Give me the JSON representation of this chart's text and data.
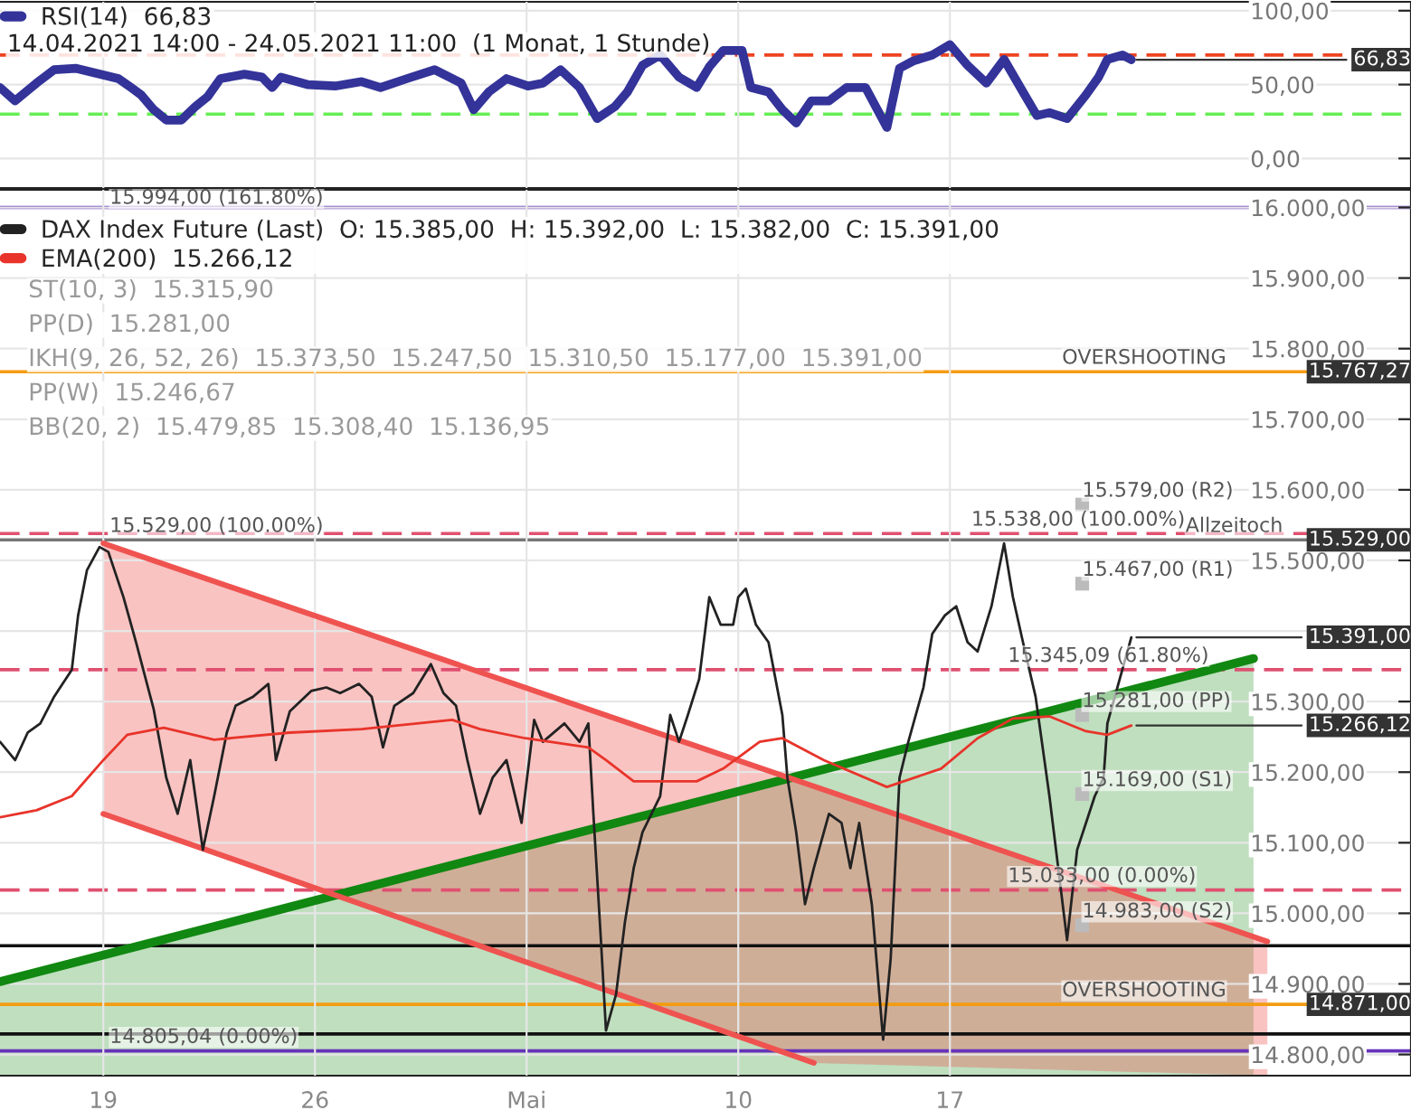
{
  "chart_data": [
    {
      "type": "line",
      "legend": "top left",
      "grid": true,
      "tick_labels": "y",
      "xlim": [
        "2021-04-15T14:00",
        "2021-06-01T06:00"
      ],
      "ylim": [
        -20,
        106
      ],
      "xticks": [
        {
          "value": "2021-04-19",
          "label": null
        },
        {
          "value": "2021-04-26",
          "label": null
        },
        {
          "value": "2021-05-03",
          "label": null
        },
        {
          "value": "2021-05-10",
          "label": null
        },
        {
          "value": "2021-05-17",
          "label": null
        }
      ],
      "yticks": [
        {
          "value": 0,
          "label": "0,00"
        },
        {
          "value": 50,
          "label": "50,00"
        },
        {
          "value": 100,
          "label": "100,00"
        }
      ],
      "series": [
        {
          "name": "RSI(14)  66,83",
          "color": "#333399",
          "x": [
            "2021-04-15T14:00",
            "2021-04-16T02:00",
            "2021-04-16T12:00",
            "2021-04-16T19:00",
            "2021-04-17T09:00",
            "2021-04-18T02:00",
            "2021-04-19T12:00",
            "2021-04-19T22:00",
            "2021-04-20T06:00",
            "2021-04-20T16:00",
            "2021-04-21T02:00",
            "2021-04-21T14:00",
            "2021-04-22T01:00",
            "2021-04-22T11:00",
            "2021-04-22T21:00",
            "2021-04-23T16:00",
            "2021-04-24T06:00",
            "2021-04-24T14:00",
            "2021-04-24T21:00",
            "2021-04-25T18:00",
            "2021-04-26T16:00",
            "2021-04-27T13:00",
            "2021-04-28T04:00",
            "2021-04-29T01:00",
            "2021-04-29T23:00",
            "2021-04-30T20:00",
            "2021-05-01T06:00",
            "2021-05-01T18:00",
            "2021-05-02T08:00",
            "2021-05-03T01:00",
            "2021-05-03T13:00",
            "2021-05-04T03:00",
            "2021-05-04T18:00",
            "2021-05-05T08:00",
            "2021-05-05T22:00",
            "2021-05-06T08:00",
            "2021-05-06T20:00",
            "2021-05-07T10:00",
            "2021-05-08T01:00",
            "2021-05-08T15:00",
            "2021-05-09T01:00",
            "2021-05-09T12:00",
            "2021-05-10T03:00",
            "2021-05-10T10:00",
            "2021-05-11T00:00",
            "2021-05-11T11:00",
            "2021-05-11T22:00",
            "2021-05-12T10:00",
            "2021-05-13T00:00",
            "2021-05-13T14:00",
            "2021-05-14T05:00",
            "2021-05-14T22:00",
            "2021-05-15T08:00",
            "2021-05-15T19:00",
            "2021-05-16T10:00",
            "2021-05-17T00:00",
            "2021-05-17T14:00",
            "2021-05-18T05:00",
            "2021-05-18T19:00",
            "2021-05-19T10:00",
            "2021-05-19T21:00",
            "2021-05-20T07:00",
            "2021-05-20T21:00",
            "2021-05-21T12:00",
            "2021-05-21T22:00",
            "2021-05-22T05:00",
            "2021-05-22T17:00",
            "2021-05-23T00:00"
          ],
          "values": [
            48,
            39,
            46,
            51,
            60,
            61,
            54,
            48,
            43,
            33,
            26,
            26,
            35,
            42,
            54,
            57,
            55,
            48,
            55,
            50,
            49,
            52,
            48,
            54,
            60,
            51,
            33,
            45,
            54,
            49,
            51,
            60,
            48,
            27,
            35,
            45,
            63,
            70,
            55,
            48,
            62,
            73,
            73,
            48,
            45,
            33,
            24,
            39,
            39,
            48,
            48,
            21,
            61,
            66,
            70,
            77,
            63,
            51,
            67,
            45,
            29,
            31,
            27,
            43,
            55,
            67,
            70,
            66.83
          ]
        }
      ],
      "ref_lines": [
        {
          "axis": "y",
          "value": 70,
          "color": "#ee4422",
          "line_style": "dashed"
        },
        {
          "axis": "y",
          "value": 30,
          "color": "#66ee55",
          "line_style": "dashed"
        }
      ],
      "annotations": [
        "14.04.2021 14:00 - 24.05.2021 11:00  (1 Monat, 1 Stunde)",
        {
          "text": "66,83",
          "x": "2021-05-23T00:00",
          "y": 66.83
        }
      ]
    },
    {
      "type": "line",
      "legend": "top left",
      "grid": true,
      "xlim": [
        "2021-04-15T14:00",
        "2021-06-01T06:00"
      ],
      "ylim": [
        14770,
        16025
      ],
      "xticks": [
        {
          "value": "2021-04-19",
          "label": "19"
        },
        {
          "value": "2021-04-26",
          "label": "26"
        },
        {
          "value": "2021-05-03",
          "label": "Mai"
        },
        {
          "value": "2021-05-10",
          "label": "10"
        },
        {
          "value": "2021-05-17",
          "label": "17"
        }
      ],
      "yticks": [
        {
          "value": 14800,
          "label": "14.800,00"
        },
        {
          "value": 14900,
          "label": "14.900,00"
        },
        {
          "value": 15000,
          "label": "15.000,00"
        },
        {
          "value": 15100,
          "label": "15.100,00"
        },
        {
          "value": 15200,
          "label": "15.200,00"
        },
        {
          "value": 15300,
          "label": "15.300,00"
        },
        {
          "value": 15400,
          "label": null
        },
        {
          "value": 15500,
          "label": "15.500,00"
        },
        {
          "value": 15600,
          "label": "15.600,00"
        },
        {
          "value": 15700,
          "label": "15.700,00"
        },
        {
          "value": 15800,
          "label": "15.800,00"
        },
        {
          "value": 15900,
          "label": "15.900,00"
        },
        {
          "value": 16000,
          "label": "16.000,00"
        }
      ],
      "series": [
        {
          "type": "area",
          "color": "#118811",
          "x": [
            "2021-04-15T14:00",
            "2021-05-27T01:00"
          ],
          "values": [
            14903,
            15361
          ]
        },
        {
          "color": "#ef5350",
          "x": [
            "2021-04-19T00:00",
            "2021-05-12T12:00",
            "2021-05-27T12:00"
          ],
          "values": [
            15524,
            15180,
            14960
          ],
          "lower": [
            15141,
            14788,
            14770
          ],
          "upper": [
            15524,
            15180,
            14960
          ]
        },
        {
          "color": "#ef5350",
          "x": [
            "2021-04-19T00:00",
            "2021-05-12T12:00"
          ],
          "values": [
            15141,
            14788
          ]
        },
        {
          "type": "scatter",
          "marker": "square",
          "color": "#bbbbbb",
          "x": [
            "2021-05-21T09:00",
            "2021-05-21T09:00",
            "2021-05-21T09:00",
            "2021-05-21T09:00",
            "2021-05-21T09:00"
          ],
          "values": [
            15579,
            15467,
            15281,
            15169,
            14983
          ]
        },
        {
          "name": "DAX Index Future (Last)  O: 15.385,00  H: 15.392,00  L: 15.382,00  C: 15.391,00",
          "color": "#222222",
          "x": [
            "2021-04-15T14:00",
            "2021-04-16T02:00",
            "2021-04-16T12:00",
            "2021-04-16T22:00",
            "2021-04-17T09:00",
            "2021-04-17T23:00",
            "2021-04-18T04:00",
            "2021-04-18T11:00",
            "2021-04-18T21:00",
            "2021-04-19T04:00",
            "2021-04-19T16:00",
            "2021-04-20T02:00",
            "2021-04-20T16:00",
            "2021-04-21T02:00",
            "2021-04-21T11:00",
            "2021-04-21T21:00",
            "2021-04-22T07:00",
            "2021-04-22T16:00",
            "2021-04-23T02:00",
            "2021-04-23T09:00",
            "2021-04-23T23:00",
            "2021-04-24T11:00",
            "2021-04-24T17:00",
            "2021-04-25T04:00",
            "2021-04-25T21:00",
            "2021-04-26T09:00",
            "2021-04-26T20:00",
            "2021-04-27T11:00",
            "2021-04-27T21:00",
            "2021-04-28T06:00",
            "2021-04-28T15:00",
            "2021-04-29T06:00",
            "2021-04-29T20:00",
            "2021-04-30T06:00",
            "2021-04-30T16:00",
            "2021-05-01T01:00",
            "2021-05-01T11:00",
            "2021-05-01T21:00",
            "2021-05-02T08:00",
            "2021-05-02T20:00",
            "2021-05-03T06:00",
            "2021-05-03T13:00",
            "2021-05-04T06:00",
            "2021-05-04T18:00",
            "2021-05-05T01:00",
            "2021-05-05T05:00",
            "2021-05-05T11:00",
            "2021-05-05T15:00",
            "2021-05-05T23:00",
            "2021-05-06T06:00",
            "2021-05-06T13:00",
            "2021-05-06T20:00",
            "2021-05-07T10:00",
            "2021-05-07T18:00",
            "2021-05-08T01:00",
            "2021-05-08T08:00",
            "2021-05-08T17:00",
            "2021-05-09T01:00",
            "2021-05-09T10:00",
            "2021-05-09T20:00",
            "2021-05-10T00:00",
            "2021-05-10T06:00",
            "2021-05-10T14:00",
            "2021-05-11T00:00",
            "2021-05-11T11:00",
            "2021-05-11T15:00",
            "2021-05-11T22:00",
            "2021-05-12T05:00",
            "2021-05-12T12:00",
            "2021-05-13T00:00",
            "2021-05-13T10:00",
            "2021-05-13T17:00",
            "2021-05-14T00:00",
            "2021-05-14T10:00",
            "2021-05-14T19:00",
            "2021-05-15T01:00",
            "2021-05-15T08:00",
            "2021-05-15T15:00",
            "2021-05-16T03:00",
            "2021-05-16T10:00",
            "2021-05-16T20:00",
            "2021-05-17T05:00",
            "2021-05-17T14:00",
            "2021-05-17T22:00",
            "2021-05-18T09:00",
            "2021-05-18T19:00",
            "2021-05-19T02:00",
            "2021-05-19T10:00",
            "2021-05-19T20:00",
            "2021-05-20T07:00",
            "2021-05-20T14:00",
            "2021-05-20T21:00",
            "2021-05-21T05:00",
            "2021-05-21T12:00",
            "2021-05-21T19:00",
            "2021-05-22T02:00",
            "2021-05-22T05:00",
            "2021-05-23T00:00"
          ],
          "values": [
            15243,
            15217,
            15256,
            15269,
            15307,
            15345,
            15422,
            15486,
            15519,
            15512,
            15448,
            15384,
            15289,
            15192,
            15141,
            15217,
            15090,
            15166,
            15256,
            15294,
            15307,
            15325,
            15217,
            15286,
            15315,
            15320,
            15312,
            15325,
            15307,
            15235,
            15294,
            15312,
            15353,
            15312,
            15294,
            15217,
            15141,
            15192,
            15217,
            15128,
            15274,
            15243,
            15269,
            15243,
            15269,
            15141,
            14962,
            14834,
            14885,
            14987,
            15064,
            15115,
            15166,
            15281,
            15243,
            15281,
            15332,
            15448,
            15409,
            15409,
            15448,
            15460,
            15409,
            15384,
            15281,
            15192,
            15115,
            15013,
            15064,
            15141,
            15128,
            15064,
            15128,
            15013,
            14821,
            14936,
            15192,
            15243,
            15320,
            15396,
            15422,
            15435,
            15384,
            15371,
            15435,
            15524,
            15448,
            15384,
            15307,
            15166,
            15064,
            14962,
            15090,
            15128,
            15166,
            15192,
            15269,
            15391
          ]
        },
        {
          "name": "EMA(200)  15.266,12",
          "color": "#e8342a",
          "x": [
            "2021-04-15T14:00",
            "2021-04-16T19:00",
            "2021-04-17T23:00",
            "2021-04-19T00:00",
            "2021-04-19T19:00",
            "2021-04-21T00:00",
            "2021-04-22T16:00",
            "2021-04-25T04:00",
            "2021-04-27T13:00",
            "2021-04-30T13:00",
            "2021-05-01T11:00",
            "2021-05-02T23:00",
            "2021-05-05T01:00",
            "2021-05-05T15:00",
            "2021-05-06T13:00",
            "2021-05-08T15:00",
            "2021-05-09T12:00",
            "2021-05-10T17:00",
            "2021-05-11T11:00",
            "2021-05-12T20:00",
            "2021-05-14T22:00",
            "2021-05-16T17:00",
            "2021-05-17T22:00",
            "2021-05-19T02:00",
            "2021-05-20T07:00",
            "2021-05-21T12:00",
            "2021-05-22T05:00",
            "2021-05-23T00:00"
          ],
          "values": [
            15136,
            15146,
            15166,
            15217,
            15253,
            15263,
            15246,
            15256,
            15261,
            15274,
            15261,
            15248,
            15235,
            15217,
            15187,
            15187,
            15205,
            15243,
            15248,
            15217,
            15179,
            15205,
            15248,
            15276,
            15279,
            15258,
            15253,
            15266.12
          ]
        }
      ],
      "ref_lines": [
        {
          "axis": "y",
          "value": 16000,
          "color": "#6633bb",
          "line_style": "solid"
        },
        {
          "axis": "y",
          "value": 15767.27,
          "color": "#f39c12",
          "line_style": "solid"
        },
        {
          "axis": "y",
          "value": 15529,
          "color": "#777777",
          "line_style": "solid"
        },
        {
          "axis": "y",
          "value": 15538,
          "color": "#e05070",
          "line_style": "dashed"
        },
        {
          "axis": "y",
          "value": 15345.09,
          "color": "#e05070",
          "line_style": "dashed"
        },
        {
          "axis": "y",
          "value": 15033,
          "color": "#e05070",
          "line_style": "dashed"
        },
        {
          "axis": "y",
          "value": 14954,
          "color": "#111111",
          "line_style": "solid"
        },
        {
          "axis": "y",
          "value": 14871,
          "color": "#f39c12",
          "line_style": "solid"
        },
        {
          "axis": "y",
          "value": 14829,
          "color": "#111111",
          "line_style": "solid"
        },
        {
          "axis": "y",
          "value": 14805.04,
          "color": "#6633bb",
          "line_style": "solid"
        }
      ],
      "annotations": [
        "ST(10, 3)  15.315,90",
        "PP(D)  15.281,00",
        "IKH(9, 26, 52, 26)  15.373,50  15.247,50  15.310,50  15.177,00  15.391,00",
        "PP(W)  15.246,67",
        "BB(20, 2)  15.479,85  15.308,40  15.136,95",
        {
          "text": "15.994,00 (161.80%)",
          "x": "2021-04-19T05:00",
          "y": 15994
        },
        {
          "text": "15.529,00 (100.00%)",
          "x": "2021-04-19T05:00",
          "y": 15529
        },
        {
          "text": "14.805,04 (0.00%)",
          "x": "2021-04-19T05:00",
          "y": 14805.04
        },
        {
          "text": "OVERSHOOTING",
          "x": "2021-05-20T17:00",
          "y": 15767.27
        },
        {
          "text": "OVERSHOOTING",
          "x": "2021-05-20T17:00",
          "y": 14871
        },
        {
          "text": "Allzeitoch",
          "x": "2021-05-24T19:00",
          "y": 15529
        },
        {
          "text": "15.538,00 (100.00%)",
          "x": "2021-05-17T17:00",
          "y": 15538
        },
        {
          "text": "15.345,09 (61.80%)",
          "x": "2021-05-18T22:00",
          "y": 15345.09
        },
        {
          "text": "15.033,00 (0.00%)",
          "x": "2021-05-18T22:00",
          "y": 15033
        },
        {
          "text": "15.579,00 (R2)",
          "x": "2021-05-21T09:00",
          "y": 15579
        },
        {
          "text": "15.467,00 (R1)",
          "x": "2021-05-21T09:00",
          "y": 15467
        },
        {
          "text": "15.281,00 (PP)",
          "x": "2021-05-21T09:00",
          "y": 15281
        },
        {
          "text": "15.169,00 (S1)",
          "x": "2021-05-21T09:00",
          "y": 15169
        },
        {
          "text": "14.983,00 (S2)",
          "x": "2021-05-21T09:00",
          "y": 14983
        },
        {
          "text": "15.767,27",
          "x": "2021-06-01T06:00",
          "y": 15767.27
        },
        {
          "text": "15.529,00",
          "x": "2021-06-01T06:00",
          "y": 15529
        },
        {
          "text": "15.391,00",
          "x": "2021-05-23T00:00",
          "y": 15391
        },
        {
          "text": "15.266,12",
          "x": "2021-05-23T00:00",
          "y": 15266.12
        },
        {
          "text": "14.871,00",
          "x": "2021-06-01T06:00",
          "y": 14871
        }
      ]
    }
  ]
}
